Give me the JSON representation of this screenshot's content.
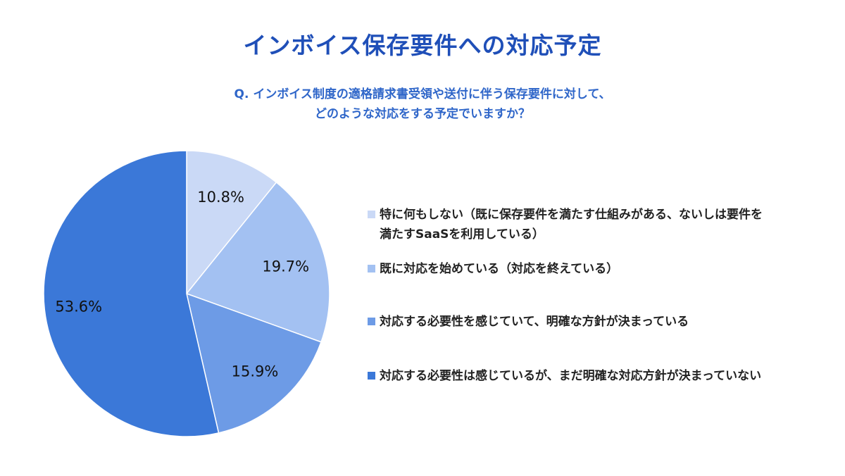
{
  "title": "インボイス保存要件への対応予定",
  "question": {
    "line1": "Q. インボイス制度の適格請求書受領や送付に伴う保存要件に対して、",
    "line2": "どのような対応をする予定でいますか？"
  },
  "chart_data": {
    "type": "pie",
    "start_angle_deg": 0,
    "direction": "clockwise",
    "slices": [
      {
        "label": "特に何もしない（既に保存要件を満たす仕組みがある、ないしは要件を\n満たすSaaSを利用している）",
        "value": 10.8,
        "display": "10.8%",
        "color": "#cad9f6"
      },
      {
        "label": "既に対応を始めている（対応を終えている）",
        "value": 19.7,
        "display": "19.7%",
        "color": "#a3c1f2"
      },
      {
        "label": "対応する必要性を感じていて、明確な方針が決まっている",
        "value": 15.9,
        "display": "15.9%",
        "color": "#6d9be6"
      },
      {
        "label": "対応する必要性は感じているが、まだ明確な対応方針が決まっていない",
        "value": 53.6,
        "display": "53.6%",
        "color": "#3b78d8"
      }
    ]
  }
}
